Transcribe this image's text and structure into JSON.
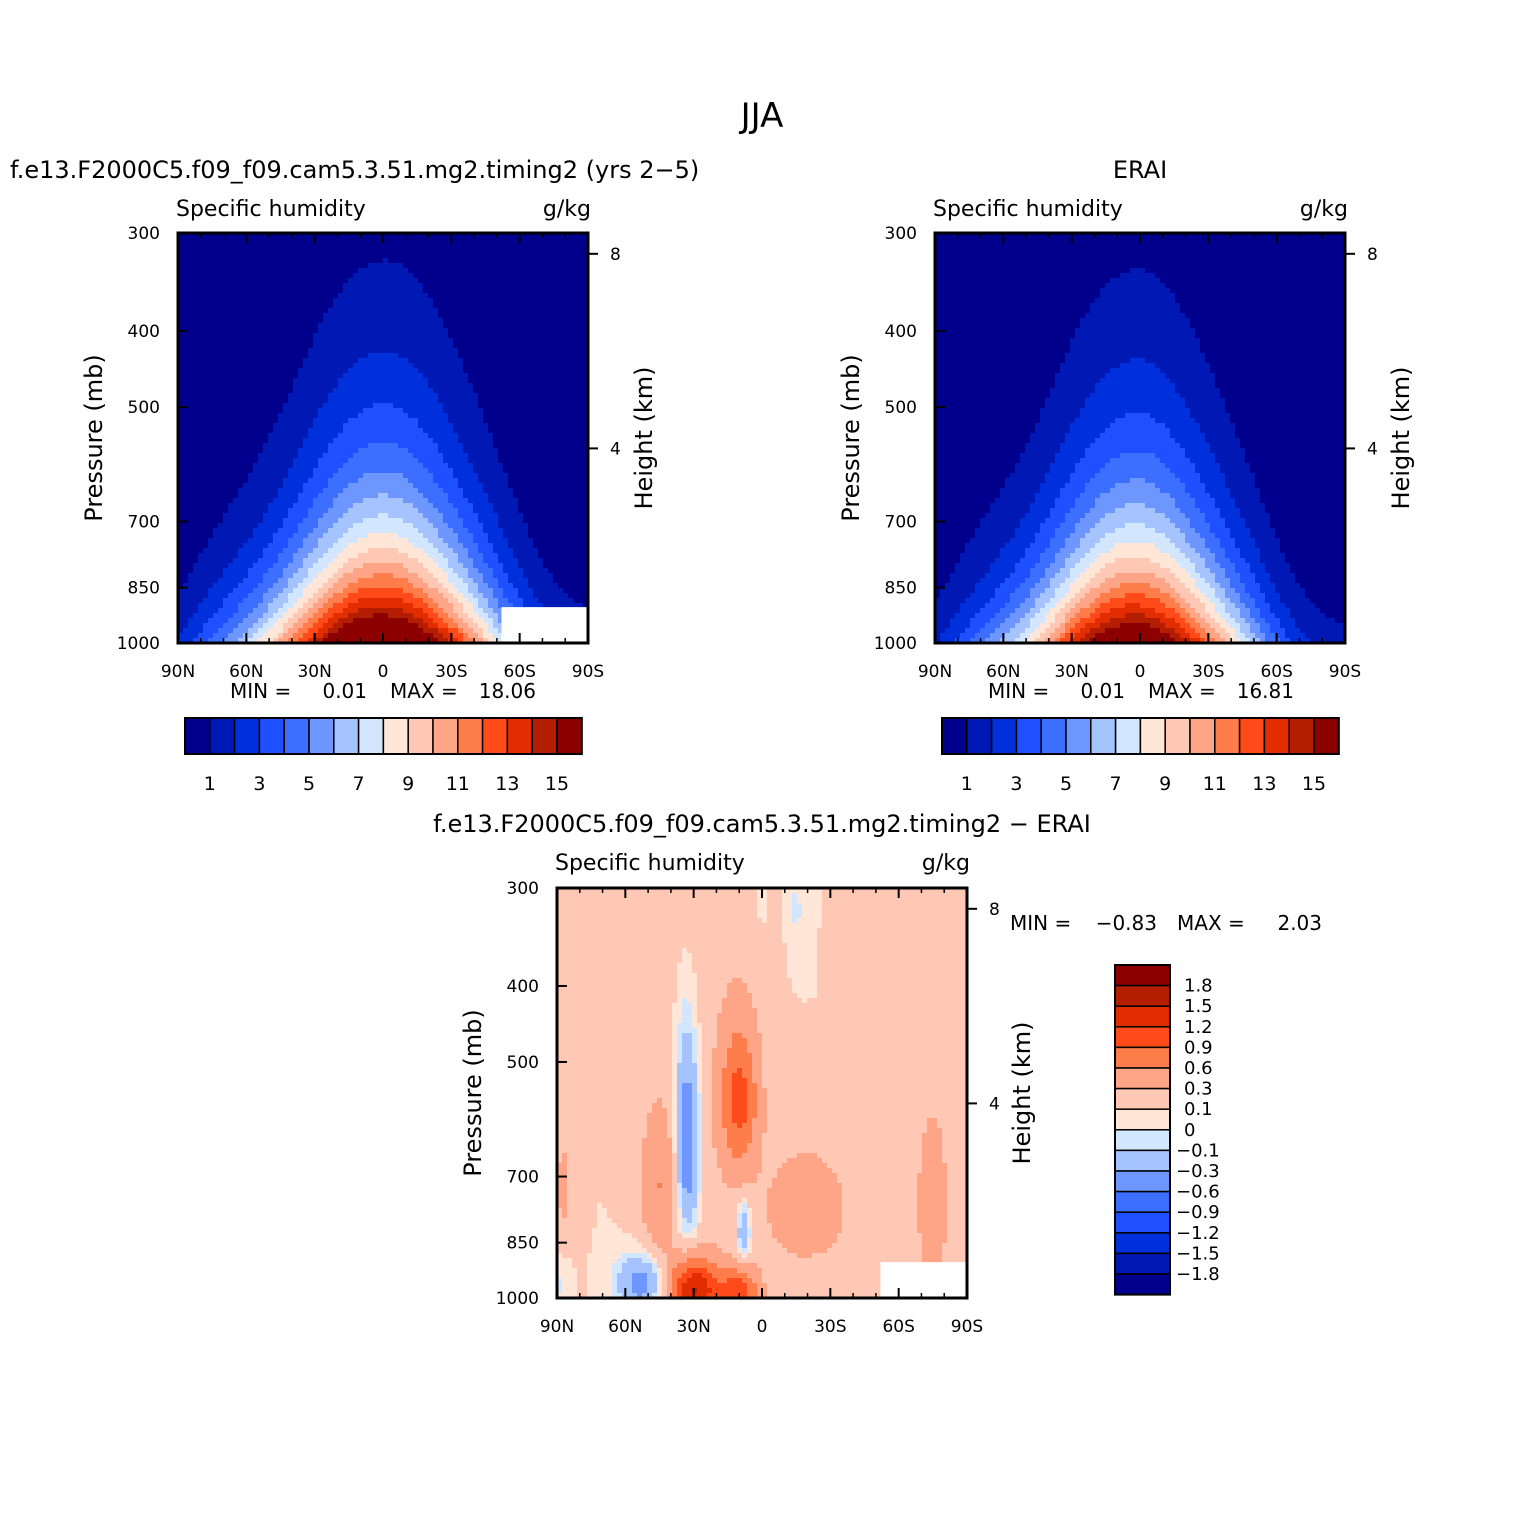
{
  "page_title": "JJA",
  "chart_data": [
    {
      "id": "model",
      "type": "contour",
      "title": "f.e13.F2000C5.f09_f09.cam5.3.51.mg2.timing2 (yrs 2−5)",
      "left_label": "Specific humidity",
      "right_label": "g/kg",
      "ylabel": "Pressure (mb)",
      "y2label": "Height (km)",
      "x_ticks": [
        "90N",
        "60N",
        "30N",
        "0",
        "30S",
        "60S",
        "90S"
      ],
      "x_tick_values": [
        90,
        60,
        30,
        0,
        -30,
        -60,
        -90
      ],
      "y_ticks": [
        "300",
        "400",
        "500",
        "700",
        "850",
        "1000"
      ],
      "y_tick_values": [
        300,
        400,
        500,
        700,
        850,
        1000
      ],
      "y2_ticks": [
        "8",
        "4"
      ],
      "y2_tick_values": [
        8,
        4
      ],
      "xlim": [
        90,
        -90
      ],
      "ylim": [
        1000,
        300
      ],
      "min_label": "MIN =",
      "min_value": "0.01",
      "max_label": "MAX =",
      "max_value": "18.06",
      "peak_lat": -2,
      "peak_surface": 18.06,
      "width_factor": 1.0,
      "blank_south": -52
    },
    {
      "id": "obs",
      "type": "contour",
      "title": "ERAI",
      "left_label": "Specific humidity",
      "right_label": "g/kg",
      "ylabel": "Pressure (mb)",
      "y2label": "Height (km)",
      "x_ticks": [
        "90N",
        "60N",
        "30N",
        "0",
        "30S",
        "60S",
        "90S"
      ],
      "x_tick_values": [
        90,
        60,
        30,
        0,
        -30,
        -60,
        -90
      ],
      "y_ticks": [
        "300",
        "400",
        "500",
        "700",
        "850",
        "1000"
      ],
      "y_tick_values": [
        300,
        400,
        500,
        700,
        850,
        1000
      ],
      "y2_ticks": [
        "8",
        "4"
      ],
      "y2_tick_values": [
        8,
        4
      ],
      "xlim": [
        90,
        -90
      ],
      "ylim": [
        1000,
        300
      ],
      "min_label": "MIN =",
      "min_value": "0.01",
      "max_label": "MAX =",
      "max_value": "16.81",
      "peak_lat": 0,
      "peak_surface": 16.81,
      "width_factor": 0.94,
      "blank_south": null
    },
    {
      "id": "diff",
      "type": "contour",
      "title": "f.e13.F2000C5.f09_f09.cam5.3.51.mg2.timing2 − ERAI",
      "left_label": "Specific humidity",
      "right_label": "g/kg",
      "ylabel": "Pressure (mb)",
      "y2label": "Height (km)",
      "x_ticks": [
        "90N",
        "60N",
        "30N",
        "0",
        "30S",
        "60S",
        "90S"
      ],
      "x_tick_values": [
        90,
        60,
        30,
        0,
        -30,
        -60,
        -90
      ],
      "y_ticks": [
        "300",
        "400",
        "500",
        "700",
        "850",
        "1000"
      ],
      "y_tick_values": [
        300,
        400,
        500,
        700,
        850,
        1000
      ],
      "y2_ticks": [
        "8",
        "4"
      ],
      "y2_tick_values": [
        8,
        4
      ],
      "xlim": [
        90,
        -90
      ],
      "ylim": [
        1000,
        300
      ],
      "min_label": "MIN =",
      "min_value": "−0.83",
      "max_label": "MAX =",
      "max_value": "2.03",
      "blank_south": -52,
      "anomalies": [
        {
          "lat": 10,
          "p": 560,
          "amp": 0.85,
          "slat": 6,
          "sp": 85
        },
        {
          "lat": 33,
          "p": 640,
          "amp": -0.7,
          "slat": 4,
          "sp": 140
        },
        {
          "lat": 52,
          "p": 960,
          "amp": -0.55,
          "slat": 8,
          "sp": 60
        },
        {
          "lat": 30,
          "p": 975,
          "amp": 1.35,
          "slat": 8,
          "sp": 60
        },
        {
          "lat": 10,
          "p": 990,
          "amp": 0.95,
          "slat": 6,
          "sp": 50
        },
        {
          "lat": 45,
          "p": 720,
          "amp": 0.45,
          "slat": 6,
          "sp": 110
        },
        {
          "lat": -20,
          "p": 770,
          "amp": 0.45,
          "slat": 12,
          "sp": 90
        },
        {
          "lat": 8,
          "p": 820,
          "amp": -0.5,
          "slat": 2,
          "sp": 50
        },
        {
          "lat": -75,
          "p": 760,
          "amp": 0.35,
          "slat": 4,
          "sp": 110
        },
        {
          "lat": 87,
          "p": 720,
          "amp": 0.35,
          "slat": 2,
          "sp": 60
        },
        {
          "lat": 90,
          "p": 960,
          "amp": -0.15,
          "slat": 4,
          "sp": 50
        },
        {
          "lat": -15,
          "p": 320,
          "amp": -0.12,
          "slat": 3,
          "sp": 40
        },
        {
          "lat": 0,
          "p": 310,
          "amp": -0.1,
          "slat": 1.5,
          "sp": 25
        }
      ]
    }
  ],
  "colorbars": {
    "absolute": {
      "levels": [
        1,
        2,
        3,
        4,
        5,
        6,
        7,
        8,
        9,
        10,
        11,
        12,
        13,
        14,
        15
      ],
      "labels": [
        "1",
        "3",
        "5",
        "7",
        "9",
        "11",
        "13",
        "15"
      ],
      "colors": [
        "#00008c",
        "#0018b4",
        "#0030dc",
        "#1e50ff",
        "#3c6eff",
        "#6e96ff",
        "#a5c3ff",
        "#d2e6ff",
        "#ffe6d7",
        "#ffc8b4",
        "#ffa587",
        "#ff7d4b",
        "#ff4b19",
        "#e12d00",
        "#b41e00",
        "#8c0000"
      ]
    },
    "difference": {
      "levels": [
        -1.8,
        -1.5,
        -1.2,
        -0.9,
        -0.6,
        -0.3,
        -0.1,
        0,
        0.1,
        0.3,
        0.6,
        0.9,
        1.2,
        1.5,
        1.8
      ],
      "labels": [
        "1.8",
        "1.5",
        "1.2",
        "0.9",
        "0.6",
        "0.3",
        "0.1",
        "0",
        "−0.1",
        "−0.3",
        "−0.6",
        "−0.9",
        "−1.2",
        "−1.5",
        "−1.8"
      ],
      "colors": [
        "#00008c",
        "#0018b4",
        "#0030dc",
        "#1e50ff",
        "#3c6eff",
        "#6e96ff",
        "#a5c3ff",
        "#d2e6ff",
        "#ffe6d7",
        "#ffc8b4",
        "#ffa587",
        "#ff7d4b",
        "#ff4b19",
        "#e12d00",
        "#b41e00",
        "#8c0000"
      ]
    }
  }
}
